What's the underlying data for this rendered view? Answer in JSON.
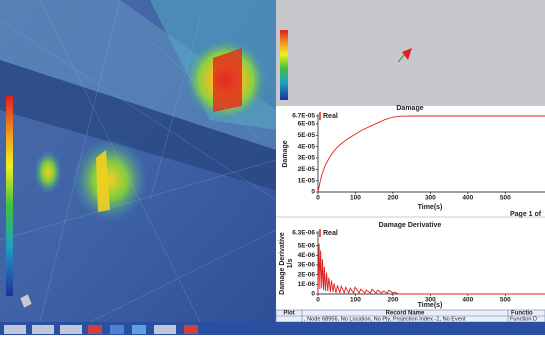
{
  "chart_data": [
    {
      "type": "line",
      "title": "Damage",
      "ylabel": "Damage",
      "xlabel": "Time(s)",
      "x": [
        0,
        5,
        10,
        20,
        30,
        40,
        50,
        60,
        75,
        90,
        100,
        120,
        140,
        160,
        180,
        200,
        220,
        260,
        300,
        400,
        500,
        630
      ],
      "series": [
        {
          "name": "Real",
          "color": "#e02020",
          "values": [
            0,
            8e-06,
            1.5e-05,
            2.4e-05,
            3e-05,
            3.5e-05,
            3.9e-05,
            4.2e-05,
            4.6e-05,
            4.9e-05,
            5.1e-05,
            5.5e-05,
            5.8e-05,
            6.1e-05,
            6.4e-05,
            6.6e-05,
            6.68e-05,
            6.7e-05,
            6.7e-05,
            6.7e-05,
            6.7e-05,
            6.7e-05
          ]
        }
      ],
      "xlim": [
        0,
        630
      ],
      "xticks": [
        0,
        100,
        200,
        300,
        400,
        500,
        630
      ],
      "ylim": [
        0,
        6.7e-05
      ],
      "yticks": [
        0,
        {
          "value": 1e-05,
          "label": "1E-05"
        },
        {
          "value": 2e-05,
          "label": "2E-05"
        },
        {
          "value": 3e-05,
          "label": "3E-05"
        },
        {
          "value": 4e-05,
          "label": "4E-05"
        },
        {
          "value": 5e-05,
          "label": "5E-05"
        },
        {
          "value": 6e-05,
          "label": "6E-05"
        },
        {
          "value": 6.7e-05,
          "label": "6.7E-05"
        }
      ],
      "grid": false
    },
    {
      "type": "line",
      "title": "Damage Derivative",
      "ylabel": "Damage Derivative",
      "ylabel2": "1/s",
      "xlabel": "Time(s)",
      "x": [
        0,
        3,
        5,
        7,
        10,
        12,
        15,
        17,
        20,
        23,
        26,
        29,
        33,
        36,
        40,
        43,
        48,
        52,
        58,
        62,
        70,
        74,
        82,
        86,
        95,
        99,
        110,
        114,
        125,
        129,
        140,
        144,
        155,
        159,
        170,
        174,
        185,
        189,
        200,
        204,
        215,
        300,
        400,
        500,
        630
      ],
      "series": [
        {
          "name": "Real",
          "color": "#e02020",
          "values": [
            0,
            5.2e-06,
            5e-07,
            4.5e-06,
            6e-07,
            3.6e-06,
            4e-07,
            2.8e-06,
            3e-07,
            2.2e-06,
            3e-07,
            1.7e-06,
            2e-07,
            1.4e-06,
            2e-07,
            1.1e-06,
            1e-07,
            9e-07,
            1e-07,
            8e-07,
            1e-07,
            7e-07,
            1e-07,
            6e-07,
            1e-07,
            7e-07,
            1e-07,
            5e-07,
            1e-07,
            4e-07,
            1e-07,
            5e-07,
            1e-07,
            4e-07,
            1e-07,
            3e-07,
            1e-07,
            4e-07,
            1e-07,
            2e-07,
            0,
            0,
            0,
            0,
            0
          ]
        }
      ],
      "xlim": [
        0,
        630
      ],
      "xticks": [
        0,
        100,
        200,
        300,
        400,
        500,
        630
      ],
      "ylim": [
        0,
        6.3e-06
      ],
      "yticks": [
        0,
        {
          "value": 1e-06,
          "label": "1E-06"
        },
        {
          "value": 2e-06,
          "label": "2E-06"
        },
        {
          "value": 3e-06,
          "label": "3E-06"
        },
        {
          "value": 4e-06,
          "label": "4E-06"
        },
        {
          "value": 5e-06,
          "label": "5E-06"
        },
        {
          "value": 6.3e-06,
          "label": "6.3E-06"
        }
      ],
      "grid": false
    }
  ],
  "page_label": "Page 1 of",
  "table": {
    "headers": [
      "Plot",
      "Record Name",
      "Functio"
    ],
    "rows": [
      [
        ", Node 68956, No Location, No Ply, Projection Index -1, No Event",
        "Function D"
      ]
    ]
  }
}
